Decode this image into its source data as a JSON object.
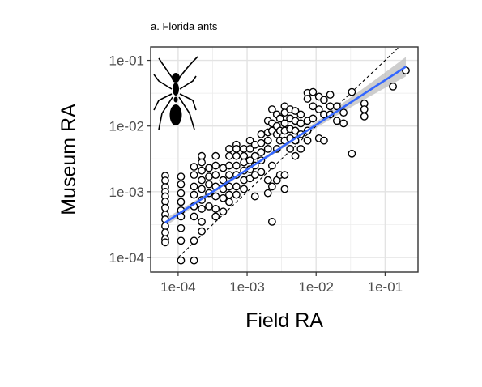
{
  "chart_data": {
    "type": "scatter",
    "title": "a. Florida ants",
    "xlabel": "Field RA",
    "ylabel": "Museum RA",
    "x_scale": "log10",
    "y_scale": "log10",
    "xlim": [
      4e-05,
      0.3
    ],
    "ylim": [
      6e-05,
      0.16
    ],
    "x_ticks": [
      0.0001,
      0.001,
      0.01,
      0.1
    ],
    "x_tick_labels": [
      "1e-04",
      "1e-03",
      "1e-02",
      "1e-01"
    ],
    "y_ticks": [
      0.0001,
      0.001,
      0.01,
      0.1
    ],
    "y_tick_labels": [
      "1e-04",
      "1e-03",
      "1e-02",
      "1e-01"
    ],
    "grid": true,
    "legend": "none",
    "reference_line": {
      "style": "dashed",
      "description": "1:1 line",
      "points": [
        [
          0.0001,
          0.0001
        ],
        [
          0.2,
          0.2
        ]
      ]
    },
    "fit_line": {
      "color": "#3366ff",
      "band_color": "#bdbdbd",
      "points": [
        [
          6.5e-05,
          0.00034
        ],
        [
          0.2,
          0.08
        ]
      ]
    },
    "silhouette": "ant-icon",
    "points": [
      [
        6.5e-05,
        0.00175
      ],
      [
        6.5e-05,
        0.00148
      ],
      [
        6.5e-05,
        0.00118
      ],
      [
        6.5e-05,
        0.001
      ],
      [
        6.5e-05,
        0.00085
      ],
      [
        6.5e-05,
        0.00071
      ],
      [
        6.5e-05,
        0.00057
      ],
      [
        6.5e-05,
        0.00045
      ],
      [
        6.5e-05,
        0.00038
      ],
      [
        6.5e-05,
        0.0003
      ],
      [
        6.5e-05,
        0.00024
      ],
      [
        6.5e-05,
        0.00019
      ],
      [
        6.5e-05,
        0.00017
      ],
      [
        0.00011,
        0.0017
      ],
      [
        0.00011,
        0.0013
      ],
      [
        0.00011,
        0.00095
      ],
      [
        0.00011,
        0.0007
      ],
      [
        0.00011,
        0.00052
      ],
      [
        0.00011,
        0.00042
      ],
      [
        0.00011,
        0.00028
      ],
      [
        0.00011,
        0.00018
      ],
      [
        0.00011,
        9e-05
      ],
      [
        0.00017,
        0.0024
      ],
      [
        0.00017,
        0.0018
      ],
      [
        0.00017,
        0.0012
      ],
      [
        0.00017,
        0.0009
      ],
      [
        0.00017,
        0.0006
      ],
      [
        0.00017,
        0.00042
      ],
      [
        0.00017,
        0.00018
      ],
      [
        0.00017,
        9e-05
      ],
      [
        0.00022,
        0.0035
      ],
      [
        0.00022,
        0.0028
      ],
      [
        0.00022,
        0.0021
      ],
      [
        0.00022,
        0.0015
      ],
      [
        0.00022,
        0.0011
      ],
      [
        0.00022,
        0.00075
      ],
      [
        0.00022,
        0.00055
      ],
      [
        0.00022,
        0.00035
      ],
      [
        0.00022,
        0.00025
      ],
      [
        0.00028,
        0.0023
      ],
      [
        0.00028,
        0.0017
      ],
      [
        0.00028,
        0.0013
      ],
      [
        0.00028,
        0.00095
      ],
      [
        0.00028,
        0.0006
      ],
      [
        0.00035,
        0.0035
      ],
      [
        0.00035,
        0.0025
      ],
      [
        0.00035,
        0.0018
      ],
      [
        0.00035,
        0.0012
      ],
      [
        0.00035,
        0.00085
      ],
      [
        0.00035,
        0.00055
      ],
      [
        0.00035,
        0.00042
      ],
      [
        0.00045,
        0.0023
      ],
      [
        0.00045,
        0.0015
      ],
      [
        0.00045,
        0.0011
      ],
      [
        0.00045,
        0.0008
      ],
      [
        0.00045,
        0.0005
      ],
      [
        0.00055,
        0.0045
      ],
      [
        0.00055,
        0.0035
      ],
      [
        0.00055,
        0.0025
      ],
      [
        0.00055,
        0.0018
      ],
      [
        0.00055,
        0.0012
      ],
      [
        0.00055,
        0.0009
      ],
      [
        0.00055,
        0.0007
      ],
      [
        0.0007,
        0.0052
      ],
      [
        0.0007,
        0.0045
      ],
      [
        0.0007,
        0.0035
      ],
      [
        0.0007,
        0.0025
      ],
      [
        0.0007,
        0.0018
      ],
      [
        0.0007,
        0.0012
      ],
      [
        0.0007,
        0.0009
      ],
      [
        0.0009,
        0.0045
      ],
      [
        0.0009,
        0.0035
      ],
      [
        0.0009,
        0.0028
      ],
      [
        0.0009,
        0.0021
      ],
      [
        0.0009,
        0.0015
      ],
      [
        0.0009,
        0.0011
      ],
      [
        0.0011,
        0.006
      ],
      [
        0.0011,
        0.0045
      ],
      [
        0.0011,
        0.003
      ],
      [
        0.0011,
        0.0022
      ],
      [
        0.0011,
        0.0016
      ],
      [
        0.0013,
        0.0052
      ],
      [
        0.0013,
        0.0035
      ],
      [
        0.0013,
        0.0025
      ],
      [
        0.0013,
        0.0018
      ],
      [
        0.0013,
        0.00085
      ],
      [
        0.0016,
        0.0075
      ],
      [
        0.0016,
        0.0055
      ],
      [
        0.0016,
        0.004
      ],
      [
        0.0016,
        0.003
      ],
      [
        0.0016,
        0.002
      ],
      [
        0.002,
        0.012
      ],
      [
        0.002,
        0.008
      ],
      [
        0.002,
        0.006
      ],
      [
        0.002,
        0.0045
      ],
      [
        0.002,
        0.0015
      ],
      [
        0.002,
        0.00095
      ],
      [
        0.0023,
        0.018
      ],
      [
        0.0023,
        0.011
      ],
      [
        0.0023,
        0.0085
      ],
      [
        0.0023,
        0.0025
      ],
      [
        0.0023,
        0.0012
      ],
      [
        0.0023,
        0.00035
      ],
      [
        0.0027,
        0.015
      ],
      [
        0.0027,
        0.01
      ],
      [
        0.0027,
        0.0075
      ],
      [
        0.0027,
        0.0045
      ],
      [
        0.0027,
        0.0015
      ],
      [
        0.003,
        0.013
      ],
      [
        0.003,
        0.0085
      ],
      [
        0.003,
        0.006
      ],
      [
        0.003,
        0.0018
      ],
      [
        0.0035,
        0.02
      ],
      [
        0.0035,
        0.016
      ],
      [
        0.0035,
        0.011
      ],
      [
        0.0035,
        0.0085
      ],
      [
        0.0035,
        0.006
      ],
      [
        0.0035,
        0.0018
      ],
      [
        0.0035,
        0.0011
      ],
      [
        0.0042,
        0.018
      ],
      [
        0.0042,
        0.013
      ],
      [
        0.0042,
        0.009
      ],
      [
        0.0042,
        0.0065
      ],
      [
        0.0042,
        0.0045
      ],
      [
        0.005,
        0.017
      ],
      [
        0.005,
        0.012
      ],
      [
        0.005,
        0.0085
      ],
      [
        0.005,
        0.006
      ],
      [
        0.005,
        0.0035
      ],
      [
        0.006,
        0.015
      ],
      [
        0.006,
        0.011
      ],
      [
        0.006,
        0.0075
      ],
      [
        0.006,
        0.0045
      ],
      [
        0.0075,
        0.032
      ],
      [
        0.0075,
        0.026
      ],
      [
        0.0075,
        0.012
      ],
      [
        0.0075,
        0.0085
      ],
      [
        0.0075,
        0.006
      ],
      [
        0.009,
        0.033
      ],
      [
        0.009,
        0.02
      ],
      [
        0.009,
        0.013
      ],
      [
        0.011,
        0.028
      ],
      [
        0.011,
        0.018
      ],
      [
        0.011,
        0.0065
      ],
      [
        0.013,
        0.025
      ],
      [
        0.013,
        0.015
      ],
      [
        0.013,
        0.006
      ],
      [
        0.016,
        0.03
      ],
      [
        0.016,
        0.02
      ],
      [
        0.016,
        0.015
      ],
      [
        0.02,
        0.02
      ],
      [
        0.02,
        0.012
      ],
      [
        0.025,
        0.016
      ],
      [
        0.025,
        0.011
      ],
      [
        0.033,
        0.033
      ],
      [
        0.033,
        0.0038
      ],
      [
        0.05,
        0.022
      ],
      [
        0.05,
        0.018
      ],
      [
        0.05,
        0.014
      ],
      [
        0.13,
        0.04
      ],
      [
        0.2,
        0.07
      ]
    ]
  }
}
